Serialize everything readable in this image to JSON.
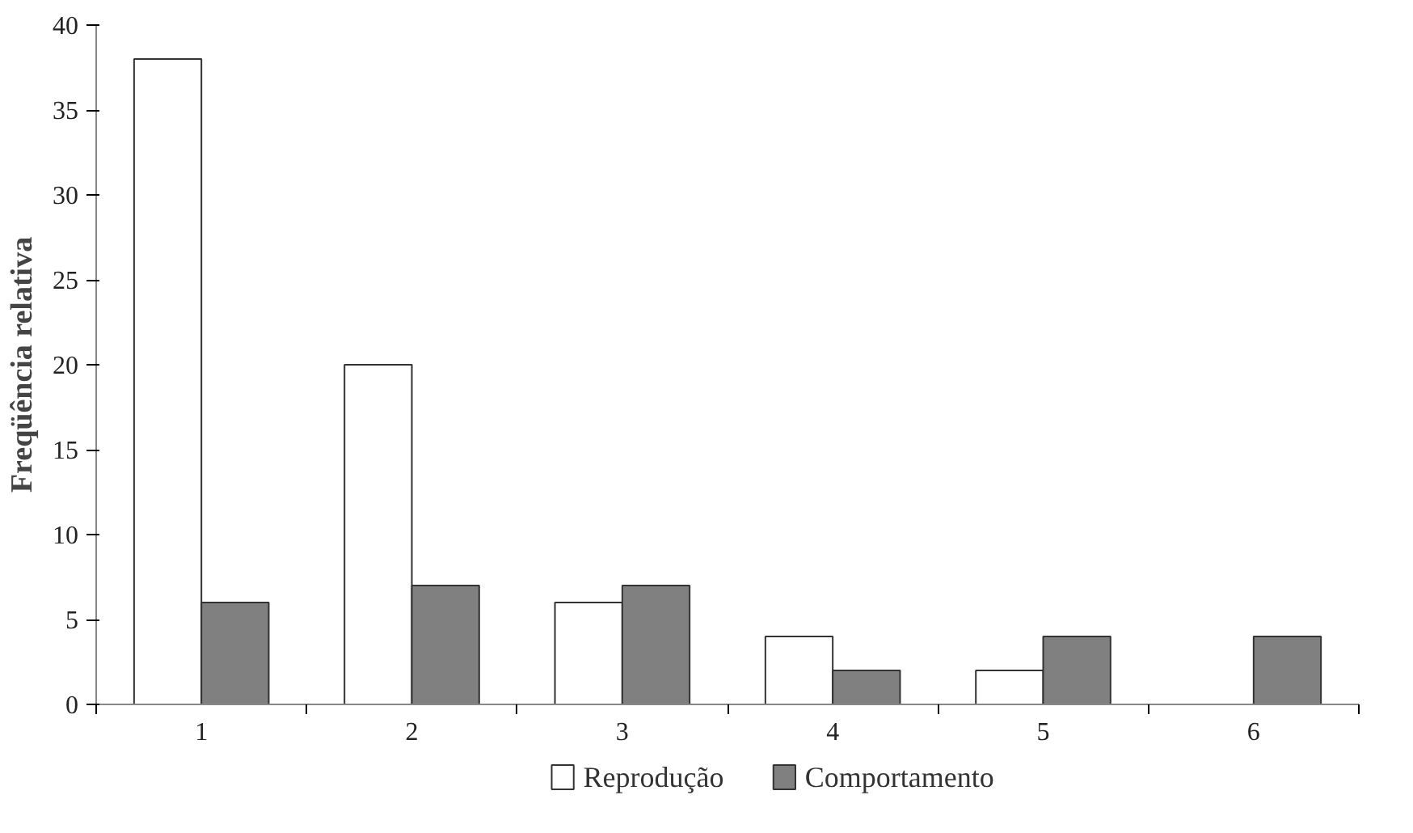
{
  "chart_data": {
    "type": "bar",
    "ylabel": "Freqüência relativa",
    "categories": [
      "1",
      "2",
      "3",
      "4",
      "5",
      "6"
    ],
    "series": [
      {
        "name": "Reprodução",
        "color": "#ffffff",
        "values": [
          38,
          20,
          6,
          4,
          2,
          null
        ]
      },
      {
        "name": "Comportamento",
        "color": "#808080",
        "values": [
          6,
          7,
          7,
          2,
          4,
          4
        ]
      }
    ],
    "ylim": [
      0,
      40
    ],
    "yticks": [
      0,
      5,
      10,
      15,
      20,
      25,
      30,
      35,
      40
    ],
    "grid": false,
    "legend": "bottom"
  }
}
